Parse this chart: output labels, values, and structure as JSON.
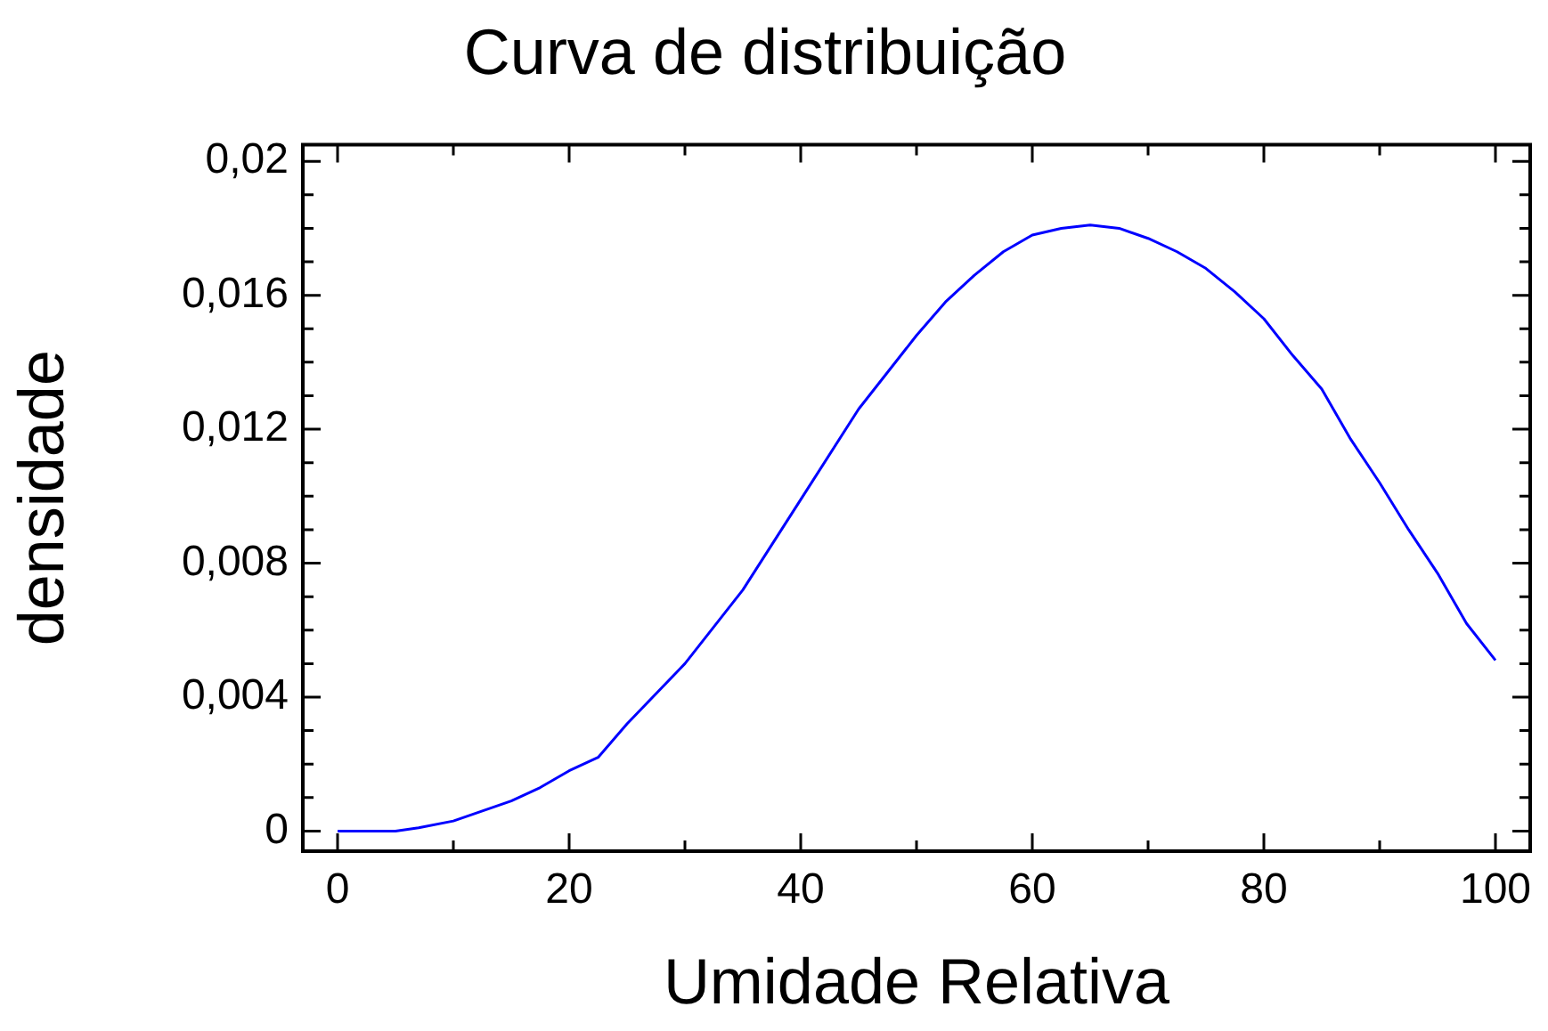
{
  "chart_data": {
    "type": "line",
    "title": "Curva de distribuição",
    "xlabel": "Umidade Relativa",
    "ylabel": "densidade",
    "x": [
      0,
      5,
      7,
      10,
      15,
      17.5,
      20,
      22.5,
      25,
      30,
      35,
      40,
      45,
      50,
      52.5,
      55,
      57.5,
      60,
      62.5,
      65,
      67.5,
      70,
      72.5,
      75,
      77.5,
      80,
      82.5,
      85,
      87.5,
      90,
      92.5,
      95,
      97.5,
      100
    ],
    "series": [
      {
        "color": "#0000ff",
        "values": [
          0,
          0,
          0.0001,
          0.0003,
          0.0009,
          0.0013,
          0.0018,
          0.0022,
          0.0032,
          0.005,
          0.0072,
          0.0099,
          0.0126,
          0.0148,
          0.0158,
          0.0166,
          0.0173,
          0.0178,
          0.018,
          0.0181,
          0.018,
          0.0177,
          0.0173,
          0.0168,
          0.0161,
          0.0153,
          0.0142,
          0.0132,
          0.0117,
          0.0104,
          0.009,
          0.0077,
          0.0062,
          0.0051
        ]
      }
    ],
    "xlim": [
      -3,
      103
    ],
    "ylim": [
      -0.0006,
      0.0205
    ],
    "xticks": [
      0,
      {
        "value": 10,
        "label": null
      },
      20,
      {
        "value": 30,
        "label": null
      },
      40,
      {
        "value": 50,
        "label": null
      },
      60,
      {
        "value": 70,
        "label": null
      },
      80,
      {
        "value": 90,
        "label": null
      },
      100
    ],
    "yticks": [
      0,
      {
        "value": 0.001,
        "label": null
      },
      {
        "value": 0.002,
        "label": null
      },
      {
        "value": 0.003,
        "label": null
      },
      {
        "value": 0.004,
        "label": "0,004"
      },
      {
        "value": 0.005,
        "label": null
      },
      {
        "value": 0.006,
        "label": null
      },
      {
        "value": 0.007,
        "label": null
      },
      {
        "value": 0.008,
        "label": "0,008"
      },
      {
        "value": 0.009,
        "label": null
      },
      {
        "value": 0.01,
        "label": null
      },
      {
        "value": 0.011,
        "label": null
      },
      {
        "value": 0.012,
        "label": "0,012"
      },
      {
        "value": 0.013,
        "label": null
      },
      {
        "value": 0.014,
        "label": null
      },
      {
        "value": 0.015,
        "label": null
      },
      {
        "value": 0.016,
        "label": "0,016"
      },
      {
        "value": 0.017,
        "label": null
      },
      {
        "value": 0.018,
        "label": null
      },
      {
        "value": 0.019,
        "label": null
      },
      {
        "value": 0.02,
        "label": "0,02"
      }
    ],
    "grid": false,
    "legend": false,
    "marker": "none",
    "line_style": "solid"
  }
}
